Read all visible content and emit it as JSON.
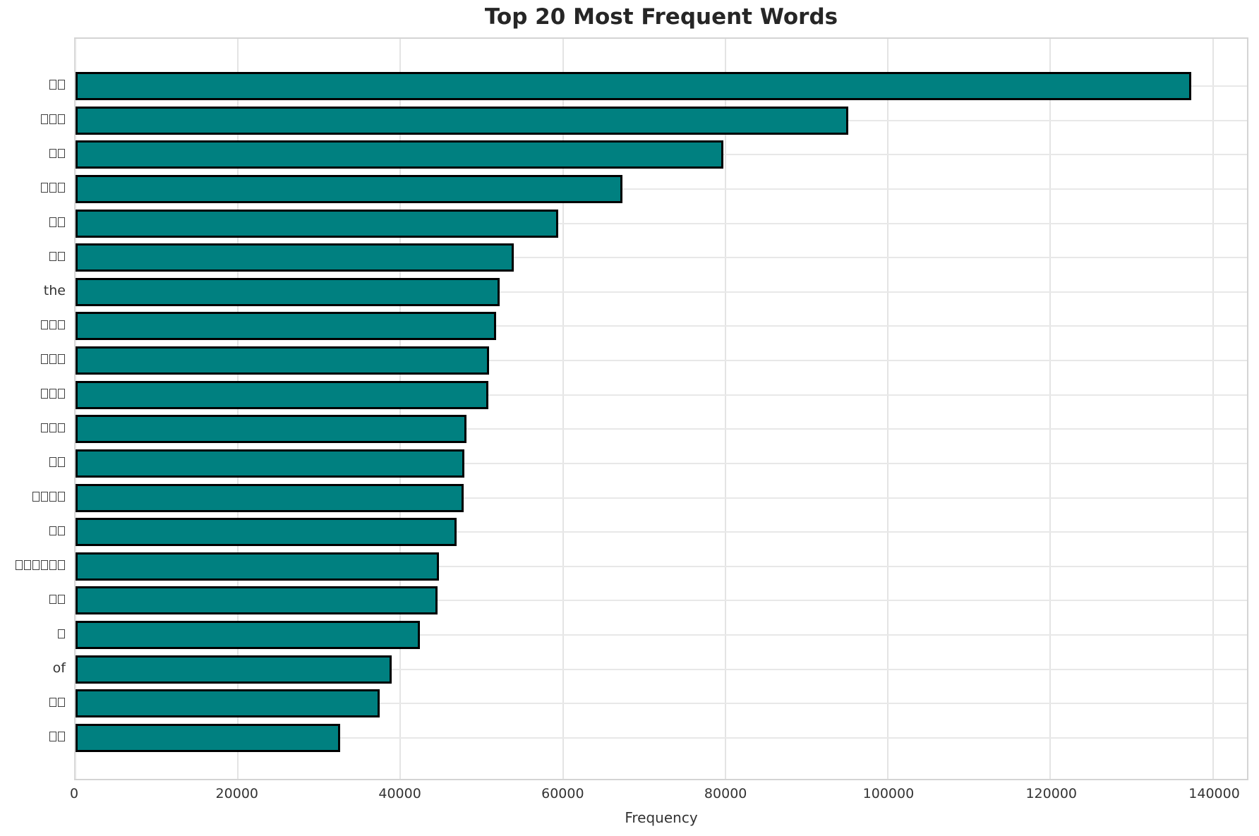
{
  "chart_data": {
    "type": "bar",
    "orientation": "horizontal",
    "title": "Top 20 Most Frequent Words",
    "xlabel": "Frequency",
    "categories": [
      "□□",
      "□□□",
      "□□",
      "□□□",
      "□□",
      "□□",
      "the",
      "□□□",
      "□□□",
      "□□□",
      "□□□",
      "□□",
      "□□□□",
      "□□",
      "□□□□□□",
      "□□",
      "□",
      "of",
      "□□",
      "□□"
    ],
    "values": [
      137300,
      95100,
      79750,
      67300,
      59400,
      53950,
      52200,
      51750,
      50900,
      50850,
      48100,
      47850,
      47800,
      46900,
      44750,
      44600,
      42400,
      38900,
      37450,
      32600
    ],
    "x_ticks": [
      0,
      20000,
      40000,
      60000,
      80000,
      100000,
      120000,
      140000
    ],
    "xlim": [
      0,
      144200
    ],
    "grid": true,
    "legend": "none",
    "bar_color": "#008080",
    "bar_edge_color": "#000000",
    "grid_color": "#e4e4e4",
    "title_color": "#262626",
    "tick_label_color": "#333333"
  }
}
